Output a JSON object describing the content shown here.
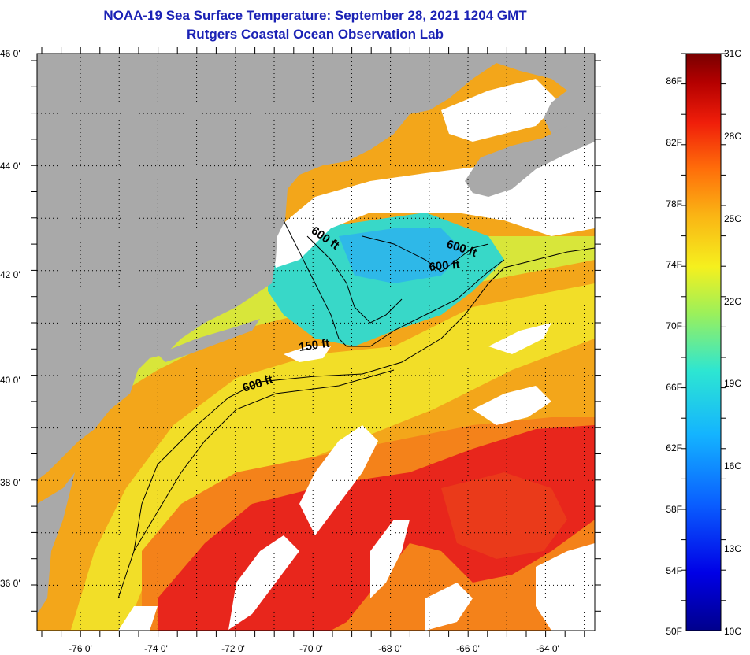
{
  "header": {
    "title": "NOAA-19 Sea Surface Temperature:  September 28, 2021 1204 GMT",
    "subtitle": "Rutgers Coastal Ocean Observation Lab"
  },
  "map": {
    "lat_labels": [
      "46 0'",
      "44 0'",
      "42 0'",
      "40 0'",
      "38 0'",
      "36 0'"
    ],
    "lon_labels": [
      "-76 0'",
      "-74 0'",
      "-72 0'",
      "-70 0'",
      "-68 0'",
      "-66 0'",
      "-64 0'"
    ],
    "contour_labels": [
      "600 ft",
      "600 ft",
      "600 ft",
      "150 ft",
      "600 ft"
    ],
    "colors": {
      "land": "#a9a9a9",
      "cloud": "#ffffff",
      "warm_core": "#e8201a",
      "warm": "#f57e16",
      "mid": "#f6c21c",
      "cool": "#c9e83a",
      "cold": "#33d6d0"
    }
  },
  "colorbar": {
    "fahrenheit_labels": [
      "86F",
      "82F",
      "78F",
      "74F",
      "70F",
      "66F",
      "62F",
      "58F",
      "54F",
      "50F"
    ],
    "celsius_labels": [
      "31C",
      "28C",
      "25C",
      "22C",
      "19C",
      "16C",
      "13C",
      "10C"
    ],
    "range_f": [
      50,
      88
    ],
    "range_c": [
      10,
      31
    ]
  }
}
